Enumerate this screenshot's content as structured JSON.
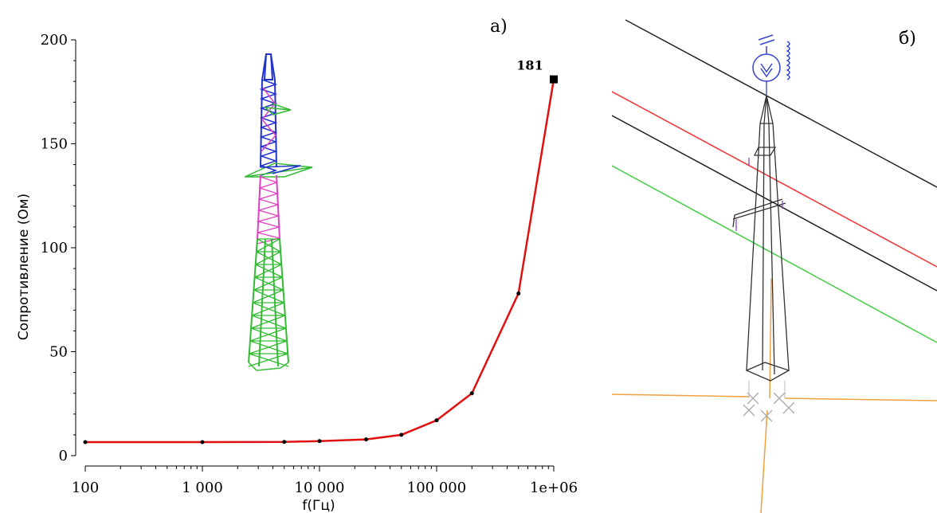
{
  "panels": {
    "left_label": "а)",
    "right_label": "б)"
  },
  "colors": {
    "line": "#e01010",
    "marker": "#000000",
    "tower_top": "#2233cc",
    "tower_mid": "#e040c0",
    "tower_bottom": "#33bb33",
    "wire_dark": "#222222",
    "wire_red": "#ee3333",
    "wire_green": "#44cc44",
    "ground": "#f0a040",
    "insulator": "#3344cc"
  },
  "chart_data": {
    "type": "line",
    "title": "",
    "xlabel": "f(Гц)",
    "ylabel": "Сопротивление (Ом)",
    "x_scale": "log",
    "xlim": [
      100,
      1000000
    ],
    "ylim": [
      0,
      200
    ],
    "x_ticks": [
      100,
      1000,
      10000,
      100000,
      1000000
    ],
    "x_tick_labels": [
      "100",
      "1 000",
      "10 000",
      "100 000",
      "1e+06"
    ],
    "y_ticks": [
      0,
      50,
      100,
      150,
      200
    ],
    "y_tick_labels": [
      "0",
      "50",
      "100",
      "150",
      "200"
    ],
    "series": [
      {
        "x": [
          100,
          1000,
          5000,
          10000,
          25000,
          50000,
          100000,
          200000,
          500000,
          1000000
        ],
        "y": [
          6.5,
          6.5,
          6.6,
          7,
          7.8,
          10,
          17,
          30,
          78,
          181
        ]
      }
    ],
    "annotation": {
      "x": 1000000,
      "y": 181,
      "text": "181"
    }
  }
}
